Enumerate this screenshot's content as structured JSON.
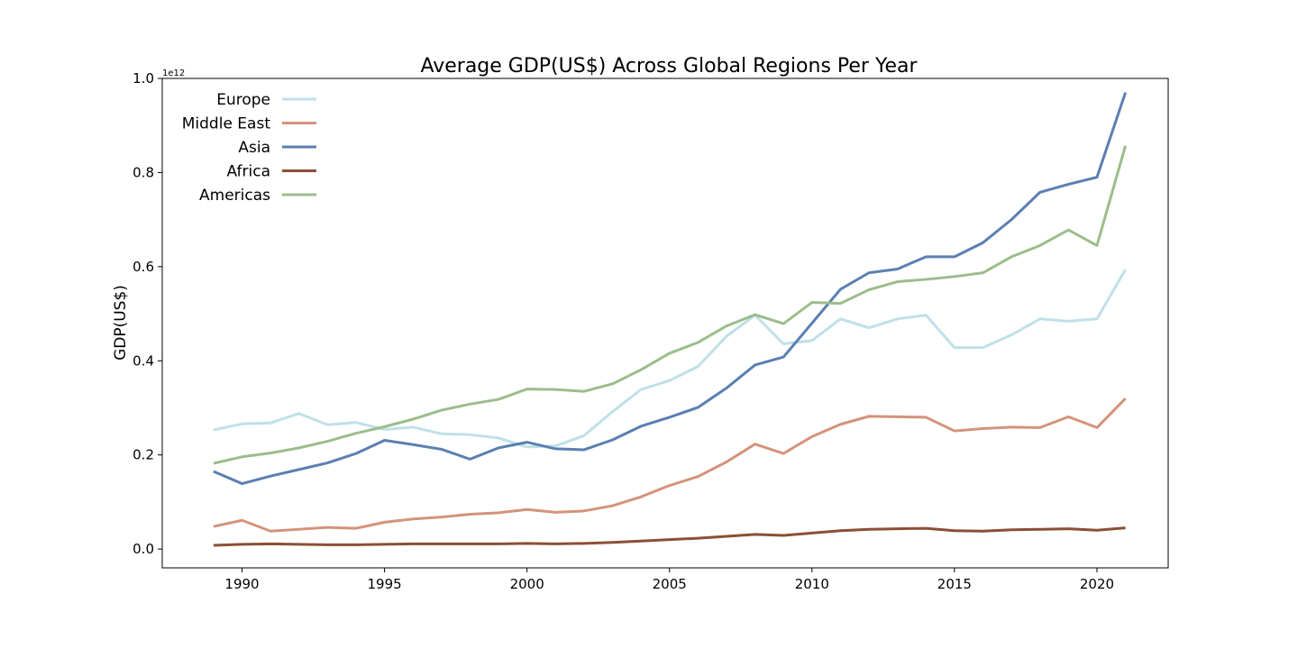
{
  "chart_data": {
    "type": "line",
    "title": "Average GDP(US$) Across Global Regions Per Year",
    "xlabel": "",
    "ylabel": "GDP(US$)",
    "y_offset_text": "1e12",
    "xlim": [
      1987.2,
      2022.5
    ],
    "ylim": [
      -0.04,
      1.0
    ],
    "x_ticks": [
      1990,
      1995,
      2000,
      2005,
      2010,
      2015,
      2020
    ],
    "y_ticks": [
      0.0,
      0.2,
      0.4,
      0.6,
      0.8,
      1.0
    ],
    "y_tick_labels": [
      "0.0",
      "0.2",
      "0.4",
      "0.6",
      "0.8",
      "1.0"
    ],
    "legend_position": "top-left",
    "grid": false,
    "x": [
      1989,
      1990,
      1991,
      1992,
      1993,
      1994,
      1995,
      1996,
      1997,
      1998,
      1999,
      2000,
      2001,
      2002,
      2003,
      2004,
      2005,
      2006,
      2007,
      2008,
      2009,
      2010,
      2011,
      2012,
      2013,
      2014,
      2015,
      2016,
      2017,
      2018,
      2019,
      2020,
      2021
    ],
    "series": [
      {
        "name": "Europe",
        "color": "#bfe0e8",
        "values": [
          0.253,
          0.266,
          0.268,
          0.288,
          0.264,
          0.269,
          0.254,
          0.259,
          0.245,
          0.243,
          0.236,
          0.217,
          0.219,
          0.241,
          0.292,
          0.339,
          0.358,
          0.388,
          0.452,
          0.497,
          0.436,
          0.443,
          0.489,
          0.47,
          0.489,
          0.497,
          0.428,
          0.428,
          0.455,
          0.489,
          0.484,
          0.489,
          0.594
        ]
      },
      {
        "name": "Middle East",
        "color": "#d4937a",
        "values": [
          0.048,
          0.061,
          0.038,
          0.042,
          0.046,
          0.044,
          0.057,
          0.064,
          0.068,
          0.074,
          0.077,
          0.084,
          0.078,
          0.081,
          0.092,
          0.111,
          0.135,
          0.154,
          0.185,
          0.223,
          0.203,
          0.239,
          0.265,
          0.282,
          0.281,
          0.28,
          0.251,
          0.256,
          0.259,
          0.258,
          0.281,
          0.258,
          0.32
        ]
      },
      {
        "name": "Asia",
        "color": "#5b7fb1",
        "values": [
          0.165,
          0.139,
          0.155,
          0.169,
          0.183,
          0.203,
          0.231,
          0.222,
          0.212,
          0.191,
          0.215,
          0.227,
          0.213,
          0.211,
          0.232,
          0.261,
          0.28,
          0.301,
          0.342,
          0.391,
          0.408,
          0.48,
          0.552,
          0.587,
          0.595,
          0.621,
          0.621,
          0.651,
          0.7,
          0.758,
          0.775,
          0.79,
          0.97
        ]
      },
      {
        "name": "Africa",
        "color": "#8b4f34",
        "values": [
          0.008,
          0.01,
          0.011,
          0.01,
          0.009,
          0.009,
          0.01,
          0.011,
          0.011,
          0.011,
          0.011,
          0.012,
          0.011,
          0.012,
          0.014,
          0.017,
          0.02,
          0.023,
          0.027,
          0.031,
          0.029,
          0.034,
          0.039,
          0.042,
          0.043,
          0.044,
          0.039,
          0.038,
          0.041,
          0.042,
          0.043,
          0.04,
          0.045
        ]
      },
      {
        "name": "Americas",
        "color": "#9bbd8b",
        "values": [
          0.182,
          0.196,
          0.204,
          0.215,
          0.229,
          0.246,
          0.26,
          0.276,
          0.295,
          0.308,
          0.318,
          0.34,
          0.339,
          0.335,
          0.351,
          0.381,
          0.416,
          0.439,
          0.474,
          0.498,
          0.479,
          0.524,
          0.522,
          0.551,
          0.568,
          0.573,
          0.579,
          0.587,
          0.621,
          0.645,
          0.678,
          0.645,
          0.857
        ]
      }
    ]
  }
}
